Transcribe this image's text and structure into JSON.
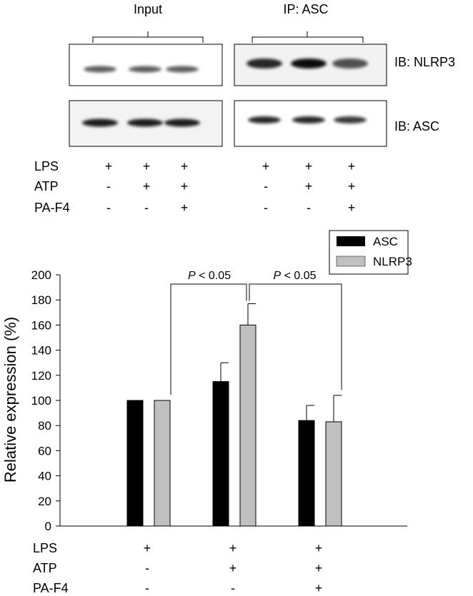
{
  "blot": {
    "panel_titles": [
      "Input",
      "IP: ASC"
    ],
    "row_labels": [
      "IB: NLRP3",
      "IB: ASC"
    ],
    "treatment_names": [
      "LPS",
      "ATP",
      "PA-F4"
    ],
    "panel_signs": [
      [
        [
          "+",
          "+",
          "+"
        ],
        [
          "-",
          "+",
          "+"
        ],
        [
          "-",
          "-",
          "+"
        ]
      ],
      [
        [
          "+",
          "+",
          "+"
        ],
        [
          "-",
          "+",
          "+"
        ],
        [
          "-",
          "-",
          "+"
        ]
      ]
    ],
    "band_intensity": {
      "input_nlrp3": [
        0.55,
        0.55,
        0.55
      ],
      "input_asc": [
        0.9,
        0.9,
        0.9
      ],
      "ip_nlrp3": [
        0.85,
        1.0,
        0.6
      ],
      "ip_asc": [
        0.85,
        0.85,
        0.75
      ]
    }
  },
  "chart_data": {
    "type": "bar",
    "ylabel": "Relative expression (%)",
    "ylim": [
      0,
      200
    ],
    "yticks": [
      "0",
      "20",
      "40",
      "60",
      "80",
      "100",
      "120",
      "140",
      "160",
      "180",
      "200"
    ],
    "series": [
      {
        "name": "ASC",
        "color": "#000000",
        "values": [
          100,
          115,
          84
        ],
        "errors": [
          0,
          15,
          12
        ]
      },
      {
        "name": "NLRP3",
        "color": "#c0c0c0",
        "values": [
          100,
          160,
          83
        ],
        "errors": [
          0,
          17,
          21
        ]
      }
    ],
    "legend_position": "top-right",
    "grid": false,
    "treatments": [
      {
        "name": "LPS",
        "signs": [
          "+",
          "+",
          "+"
        ]
      },
      {
        "name": "ATP",
        "signs": [
          "-",
          "+",
          "+"
        ]
      },
      {
        "name": "PA-F4",
        "signs": [
          "-",
          "-",
          "+"
        ]
      }
    ],
    "annotations": [
      {
        "prefix": "P",
        "text": " < 0.05",
        "from_group": 0,
        "to_group": 1
      },
      {
        "prefix": "P",
        "text": " < 0.05",
        "from_group": 1,
        "to_group": 2
      }
    ]
  }
}
